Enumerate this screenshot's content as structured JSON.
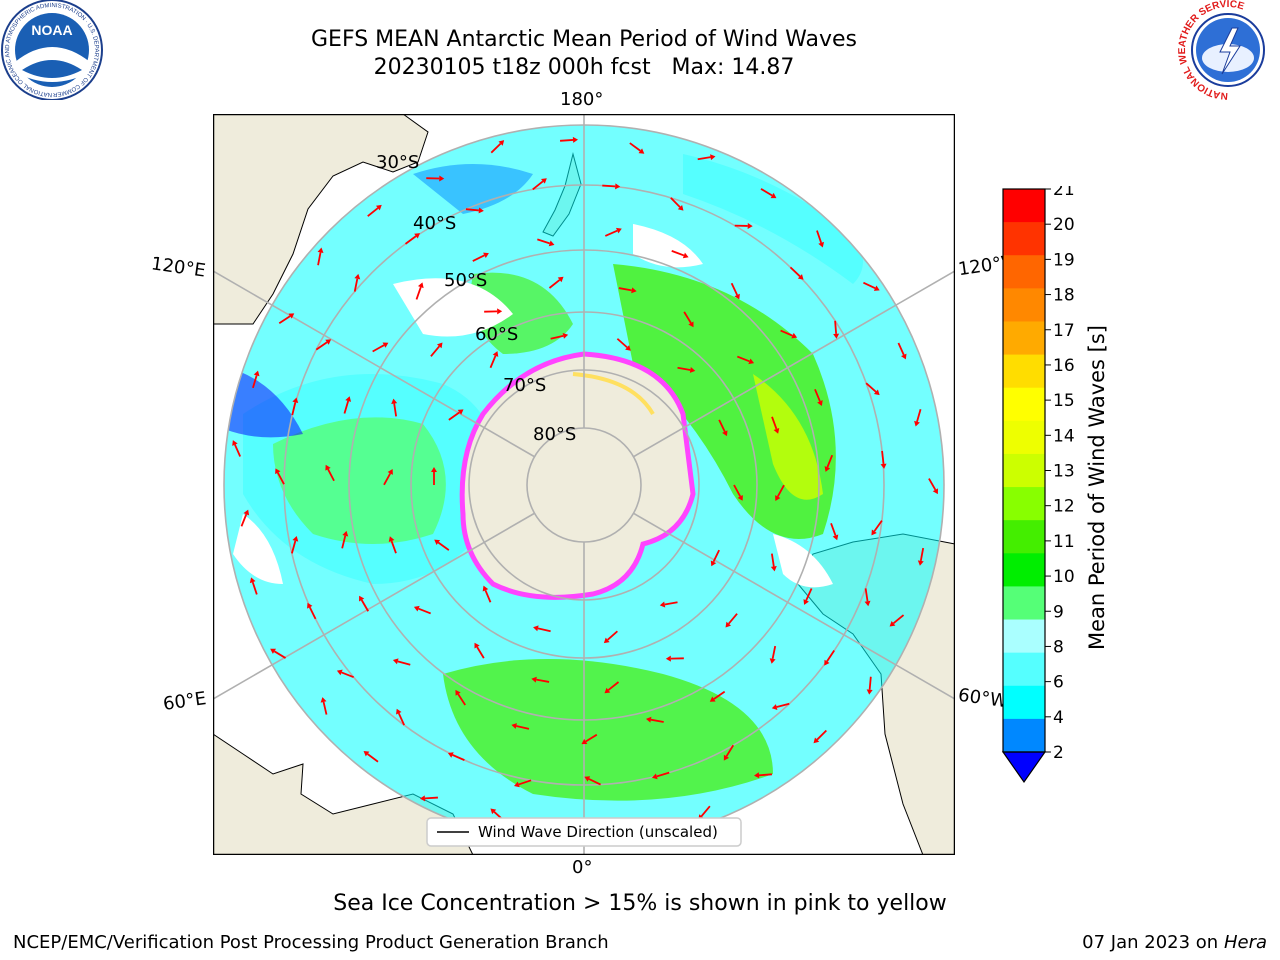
{
  "title": {
    "line1": "GEFS MEAN Antarctic Mean Period of Wind Waves",
    "line2": "20230105 t18z 000h fcst   Max: 14.87"
  },
  "logos": {
    "noaa": {
      "text": "NOAA",
      "ring_text": "NATIONAL OCEANIC AND ATMOSPHERIC ADMINISTRATION · U.S. DEPARTMENT OF COMMERCE"
    },
    "nws": {
      "ring_text": "NATIONAL WEATHER SERVICE"
    }
  },
  "map": {
    "projection": "south-polar-stereographic",
    "lon_labels": {
      "top": "180°",
      "bottom": "0°",
      "upper_left": "120°E",
      "lower_left": "60°E",
      "upper_right": "120°W",
      "lower_right": "60°W"
    },
    "lat_labels": [
      "30°S",
      "40°S",
      "50°S",
      "60°S",
      "70°S",
      "80°S"
    ],
    "legend_label": "Wind Wave Direction (unscaled)",
    "colors": {
      "land": "#efecdc",
      "ice_pink": "#ff44ff",
      "ice_yellow": "#ffe060",
      "arrow": "#ff0000",
      "gridline": "#b0b0b0"
    }
  },
  "colorbar": {
    "title": "Mean Period of Wind Waves [s]",
    "ticks": [
      "21",
      "20",
      "19",
      "18",
      "17",
      "16",
      "15",
      "14",
      "13",
      "12",
      "11",
      "10",
      "9",
      "8",
      "6",
      "4",
      "2"
    ],
    "level_colors": [
      "#ff0000",
      "#ff3300",
      "#ff6600",
      "#ff8800",
      "#ffaa00",
      "#ffdd00",
      "#ffff00",
      "#eeff00",
      "#ccff00",
      "#88ff00",
      "#44ee00",
      "#00ee00",
      "#55ff77",
      "#aaffff",
      "#55ffff",
      "#00ffff",
      "#0088ff"
    ],
    "extend_color": "#0000ff"
  },
  "caption": "Sea Ice Concentration > 15% is shown in pink to yellow",
  "footer": {
    "left": "NCEP/EMC/Verification Post Processing Product Generation Branch",
    "right_date": "07 Jan 2023 on ",
    "right_host": "Hera"
  }
}
